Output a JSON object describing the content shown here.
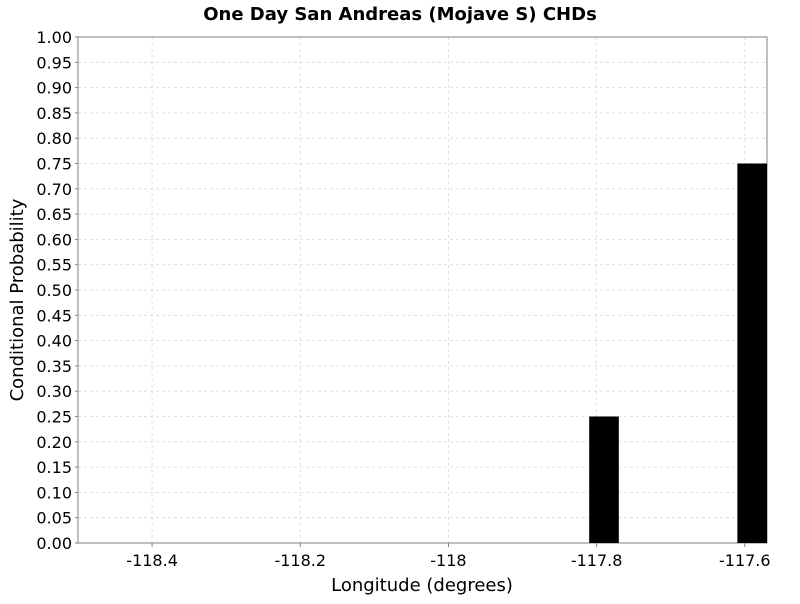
{
  "chart_data": {
    "type": "bar",
    "title": "One Day San Andreas (Mojave S) CHDs",
    "xlabel": "Longitude (degrees)",
    "ylabel": "Conditional Probability",
    "xlim": [
      -118.5,
      -117.57
    ],
    "ylim": [
      0,
      1
    ],
    "x_ticks": [
      -118.4,
      -118.2,
      -118,
      -117.8,
      -117.6
    ],
    "x_tick_labels": [
      "-118.4",
      "-118.2",
      "-118",
      "-117.8",
      "-117.6"
    ],
    "y_ticks": [
      0,
      0.05,
      0.1,
      0.15,
      0.2,
      0.25,
      0.3,
      0.35,
      0.4,
      0.45,
      0.5,
      0.55,
      0.6,
      0.65,
      0.7,
      0.75,
      0.8,
      0.85,
      0.9,
      0.95,
      1.0
    ],
    "y_tick_labels": [
      "0.00",
      "0.05",
      "0.10",
      "0.15",
      "0.20",
      "0.25",
      "0.30",
      "0.35",
      "0.40",
      "0.45",
      "0.50",
      "0.55",
      "0.60",
      "0.65",
      "0.70",
      "0.75",
      "0.80",
      "0.85",
      "0.90",
      "0.95",
      "1.00"
    ],
    "bar_width": 0.04,
    "bars": [
      {
        "x": -117.79,
        "value": 0.25
      },
      {
        "x": -117.59,
        "value": 0.75
      }
    ],
    "grid": true,
    "colors": {
      "bar": "#000000",
      "grid": "#d9d9d9",
      "axis": "#808080"
    }
  }
}
